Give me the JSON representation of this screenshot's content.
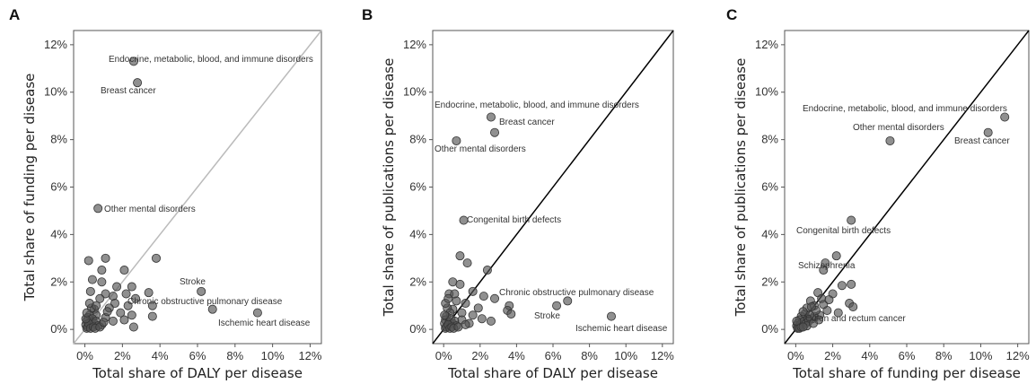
{
  "chart_data": [
    {
      "panel": "A",
      "type": "scatter",
      "xlabel": "Total share of DALY per disease",
      "ylabel": "Total share of funding per disease",
      "xlim": [
        -0.6,
        12.6
      ],
      "ylim": [
        -0.6,
        12.6
      ],
      "xticks": [
        "0%",
        "2%",
        "4%",
        "6%",
        "8%",
        "10%",
        "12%"
      ],
      "yticks": [
        "0%",
        "2%",
        "4%",
        "6%",
        "8%",
        "10%",
        "12%"
      ],
      "diagonal_color": "#bbbbbb",
      "annotations": [
        {
          "text": "Endocrine, metabolic, blood, and immune disorders",
          "x": 2.6,
          "y": 11.3
        },
        {
          "text": "Breast cancer",
          "x": 2.8,
          "y": 10.4
        },
        {
          "text": "Other mental disorders",
          "x": 0.7,
          "y": 5.1
        },
        {
          "text": "Stroke",
          "x": 6.2,
          "y": 1.6
        },
        {
          "text": "Chronic obstructive pulmonary disease",
          "x": 3.6,
          "y": 1.0
        },
        {
          "text": "Ischemic heart disease",
          "x": 9.2,
          "y": 0.7
        }
      ],
      "points": [
        [
          2.6,
          11.3
        ],
        [
          2.8,
          10.4
        ],
        [
          0.7,
          5.1
        ],
        [
          6.2,
          1.6
        ],
        [
          3.6,
          1.0
        ],
        [
          9.2,
          0.7
        ],
        [
          6.8,
          0.85
        ],
        [
          3.8,
          3.0
        ],
        [
          0.2,
          2.9
        ],
        [
          1.1,
          3.0
        ],
        [
          2.1,
          2.5
        ],
        [
          0.9,
          2.5
        ],
        [
          0.4,
          2.1
        ],
        [
          0.9,
          2.0
        ],
        [
          1.7,
          1.8
        ],
        [
          2.5,
          1.8
        ],
        [
          3.4,
          1.55
        ],
        [
          1.1,
          1.5
        ],
        [
          1.5,
          1.4
        ],
        [
          2.2,
          1.5
        ],
        [
          0.3,
          1.6
        ],
        [
          0.8,
          1.3
        ],
        [
          2.7,
          1.3
        ],
        [
          1.6,
          1.1
        ],
        [
          2.3,
          1.0
        ],
        [
          1.3,
          0.9
        ],
        [
          0.5,
          0.85
        ],
        [
          1.9,
          0.7
        ],
        [
          2.5,
          0.6
        ],
        [
          1.1,
          0.5
        ],
        [
          0.6,
          0.6
        ],
        [
          3.6,
          0.55
        ],
        [
          2.1,
          0.4
        ],
        [
          1.5,
          0.35
        ],
        [
          2.6,
          0.1
        ],
        [
          0.9,
          0.2
        ],
        [
          0.35,
          0.9
        ],
        [
          0.25,
          0.6
        ],
        [
          0.15,
          0.5
        ],
        [
          0.1,
          0.35
        ],
        [
          0.05,
          0.2
        ],
        [
          0.2,
          0.15
        ],
        [
          0.3,
          0.3
        ],
        [
          0.4,
          0.45
        ],
        [
          0.5,
          0.25
        ],
        [
          0.6,
          0.35
        ],
        [
          0.7,
          0.15
        ],
        [
          0.1,
          0.05
        ],
        [
          0.15,
          0.1
        ],
        [
          0.2,
          0.25
        ],
        [
          0.3,
          0.05
        ],
        [
          0.05,
          0.45
        ],
        [
          0.1,
          0.7
        ],
        [
          0.45,
          0.1
        ],
        [
          0.55,
          0.05
        ],
        [
          0.8,
          0.1
        ],
        [
          1.0,
          0.3
        ],
        [
          0.25,
          1.1
        ],
        [
          0.6,
          1.0
        ],
        [
          1.2,
          0.75
        ]
      ]
    },
    {
      "panel": "B",
      "type": "scatter",
      "xlabel": "Total share of DALY per disease",
      "ylabel": "Total share of publications per disease",
      "xlim": [
        -0.6,
        12.6
      ],
      "ylim": [
        -0.6,
        12.6
      ],
      "xticks": [
        "0%",
        "2%",
        "4%",
        "6%",
        "8%",
        "10%",
        "12%"
      ],
      "yticks": [
        "0%",
        "2%",
        "4%",
        "6%",
        "8%",
        "10%",
        "12%"
      ],
      "diagonal_color": "#000000",
      "annotations": [
        {
          "text": "Endocrine, metabolic, blood, and immune disorders",
          "x": 2.6,
          "y": 8.95
        },
        {
          "text": "Breast cancer",
          "x": 2.8,
          "y": 8.3
        },
        {
          "text": "Other mental disorders",
          "x": 0.7,
          "y": 7.95
        },
        {
          "text": "Congenital birth defects",
          "x": 1.1,
          "y": 4.6
        },
        {
          "text": "Chronic obstructive pulmonary disease",
          "x": 3.6,
          "y": 1.0
        },
        {
          "text": "Stroke",
          "x": 6.2,
          "y": 1.0
        },
        {
          "text": "Ischemic heart disease",
          "x": 9.2,
          "y": 0.55
        }
      ],
      "points": [
        [
          2.6,
          8.95
        ],
        [
          2.8,
          8.3
        ],
        [
          0.7,
          7.95
        ],
        [
          1.1,
          4.6
        ],
        [
          3.6,
          1.0
        ],
        [
          6.2,
          1.0
        ],
        [
          6.8,
          1.2
        ],
        [
          9.2,
          0.55
        ],
        [
          0.9,
          3.1
        ],
        [
          1.3,
          2.8
        ],
        [
          2.4,
          2.5
        ],
        [
          0.5,
          2.0
        ],
        [
          0.9,
          1.9
        ],
        [
          1.6,
          1.6
        ],
        [
          0.3,
          1.5
        ],
        [
          2.2,
          1.4
        ],
        [
          2.8,
          1.3
        ],
        [
          0.7,
          1.2
        ],
        [
          1.2,
          1.1
        ],
        [
          1.9,
          0.9
        ],
        [
          3.5,
          0.8
        ],
        [
          3.7,
          0.65
        ],
        [
          0.5,
          0.85
        ],
        [
          1.6,
          0.6
        ],
        [
          2.1,
          0.45
        ],
        [
          2.6,
          0.35
        ],
        [
          1.0,
          0.4
        ],
        [
          1.4,
          0.25
        ],
        [
          0.2,
          0.9
        ],
        [
          0.35,
          0.7
        ],
        [
          0.15,
          0.55
        ],
        [
          0.1,
          0.4
        ],
        [
          0.05,
          0.25
        ],
        [
          0.2,
          0.15
        ],
        [
          0.3,
          0.3
        ],
        [
          0.4,
          0.45
        ],
        [
          0.5,
          0.25
        ],
        [
          0.6,
          0.35
        ],
        [
          0.7,
          0.15
        ],
        [
          0.1,
          0.05
        ],
        [
          0.15,
          0.1
        ],
        [
          0.25,
          0.2
        ],
        [
          0.35,
          0.05
        ],
        [
          0.05,
          0.6
        ],
        [
          0.1,
          1.1
        ],
        [
          0.45,
          0.1
        ],
        [
          0.55,
          0.05
        ],
        [
          0.8,
          0.1
        ],
        [
          1.0,
          0.7
        ],
        [
          0.25,
          1.3
        ],
        [
          0.6,
          1.5
        ],
        [
          1.2,
          0.2
        ]
      ]
    },
    {
      "panel": "C",
      "type": "scatter",
      "xlabel": "Total share of funding per disease",
      "ylabel": "Total share of publications per disease",
      "xlim": [
        -0.6,
        12.6
      ],
      "ylim": [
        -0.6,
        12.6
      ],
      "xticks": [
        "0%",
        "2%",
        "4%",
        "6%",
        "8%",
        "10%",
        "12%"
      ],
      "yticks": [
        "0%",
        "2%",
        "4%",
        "6%",
        "8%",
        "10%",
        "12%"
      ],
      "diagonal_color": "#000000",
      "annotations": [
        {
          "text": "Endocrine, metabolic, blood, and immune disorders",
          "x": 11.3,
          "y": 8.95
        },
        {
          "text": "Other mental disorders",
          "x": 5.1,
          "y": 7.95
        },
        {
          "text": "Breast cancer",
          "x": 10.4,
          "y": 8.3
        },
        {
          "text": "Congenital birth defects",
          "x": 3.0,
          "y": 4.6
        },
        {
          "text": "Schizophrenia",
          "x": 1.6,
          "y": 2.8
        },
        {
          "text": "Colon and rectum cancer",
          "x": 1.0,
          "y": 0.55
        }
      ],
      "points": [
        [
          11.3,
          8.95
        ],
        [
          10.4,
          8.3
        ],
        [
          5.1,
          7.95
        ],
        [
          3.0,
          4.6
        ],
        [
          1.6,
          2.8
        ],
        [
          2.2,
          3.1
        ],
        [
          1.5,
          2.5
        ],
        [
          3.0,
          1.9
        ],
        [
          2.5,
          1.85
        ],
        [
          1.2,
          1.55
        ],
        [
          2.0,
          1.5
        ],
        [
          1.4,
          1.3
        ],
        [
          0.8,
          1.2
        ],
        [
          2.9,
          1.1
        ],
        [
          3.1,
          0.95
        ],
        [
          1.0,
          1.0
        ],
        [
          1.7,
          0.8
        ],
        [
          2.3,
          0.7
        ],
        [
          0.6,
          0.9
        ],
        [
          1.3,
          0.6
        ],
        [
          1.0,
          0.55
        ],
        [
          0.5,
          0.65
        ],
        [
          0.9,
          0.45
        ],
        [
          0.3,
          0.55
        ],
        [
          0.2,
          0.4
        ],
        [
          0.1,
          0.25
        ],
        [
          0.05,
          0.15
        ],
        [
          0.15,
          0.1
        ],
        [
          0.25,
          0.2
        ],
        [
          0.35,
          0.3
        ],
        [
          0.45,
          0.35
        ],
        [
          0.55,
          0.25
        ],
        [
          0.65,
          0.45
        ],
        [
          0.75,
          0.6
        ],
        [
          0.4,
          0.75
        ],
        [
          0.7,
          0.35
        ],
        [
          0.1,
          0.05
        ],
        [
          0.2,
          0.05
        ],
        [
          0.3,
          0.1
        ],
        [
          0.05,
          0.35
        ],
        [
          1.5,
          1.05
        ],
        [
          1.8,
          1.25
        ],
        [
          1.1,
          0.8
        ],
        [
          0.85,
          0.95
        ],
        [
          1.25,
          0.4
        ],
        [
          0.6,
          0.15
        ],
        [
          0.4,
          0.1
        ],
        [
          0.95,
          0.25
        ]
      ]
    }
  ]
}
